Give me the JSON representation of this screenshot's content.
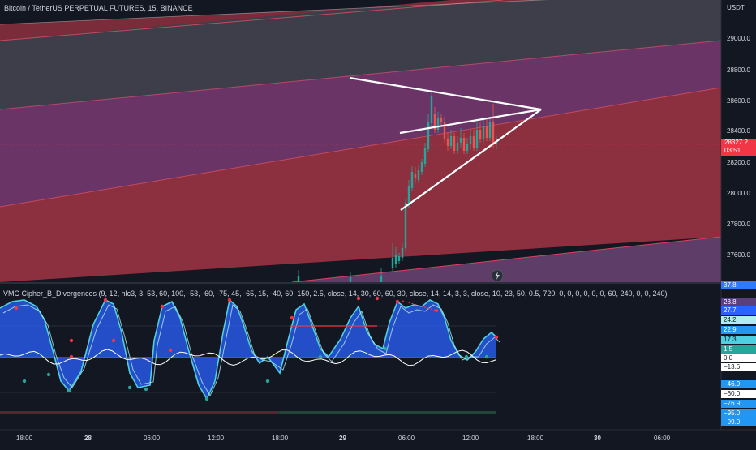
{
  "header": {
    "title": "Bitcoin / TetherUS PERPETUAL FUTURES, 15, BINANCE",
    "currency": "USDT"
  },
  "price_axis": {
    "ticks": [
      "29000.0",
      "28800.0",
      "28600.0",
      "28400.0",
      "28200.0",
      "28000.0",
      "27800.0",
      "27600.0"
    ],
    "current_price": "28327.2",
    "countdown": "03:51"
  },
  "indicator": {
    "label": "VMC Cipher_B_Divergences (9, 12, hlc3, 3, 53, 60, 100, -53, -60, -75, 45, -65, 15, -40, 60, 150, 2.5, close, 14, 30, 60, 60, 30, close, 14, 14, 3, 3, close, 10, 23, 50, 0.5, 720, 0, 0, 0, 0, 0, 0, 60, 240, 0, 0, 240)",
    "tags": [
      {
        "text": "37.8",
        "bg": "#3179f5",
        "fg": "#ffffff"
      },
      {
        "text": "28.8",
        "bg": "#5b3f7c",
        "fg": "#ffffff"
      },
      {
        "text": "27.7",
        "bg": "#2962ff",
        "fg": "#ffffff"
      },
      {
        "text": "24.2",
        "bg": "#b2ebf2",
        "fg": "#131722"
      },
      {
        "text": "22.9",
        "bg": "#2196f3",
        "fg": "#ffffff"
      },
      {
        "text": "17.3",
        "bg": "#4dd0e1",
        "fg": "#131722"
      },
      {
        "text": "1.5",
        "bg": "#26a69a",
        "fg": "#ffffff"
      },
      {
        "text": "0.0",
        "bg": "#ffffff",
        "fg": "#131722"
      },
      {
        "text": "−13.6",
        "bg": "#ffffff",
        "fg": "#131722"
      },
      {
        "text": "−46.9",
        "bg": "#2196f3",
        "fg": "#ffffff"
      },
      {
        "text": "−60.0",
        "bg": "#ffffff",
        "fg": "#131722"
      },
      {
        "text": "−76.9",
        "bg": "#2196f3",
        "fg": "#ffffff"
      },
      {
        "text": "−95.0",
        "bg": "#2196f3",
        "fg": "#ffffff"
      },
      {
        "text": "−99.0",
        "bg": "#2196f3",
        "fg": "#ffffff"
      }
    ]
  },
  "time_axis": {
    "ticks": [
      "18:00",
      "28",
      "06:00",
      "12:00",
      "18:00",
      "29",
      "06:00",
      "12:00",
      "18:00",
      "30",
      "06:00"
    ]
  },
  "colors": {
    "background": "#131722",
    "channel_red": "#8c2f3e",
    "channel_purple": "#6b3466",
    "wave_blue": "#2962ff",
    "price_tag": "#f23645"
  }
}
